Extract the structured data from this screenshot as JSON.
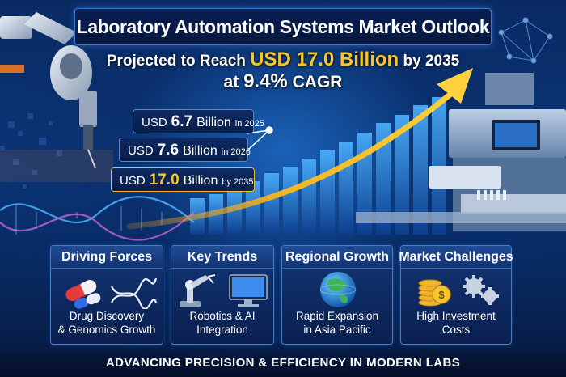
{
  "title": "Laboratory Automation Systems Market Outlook",
  "headline": {
    "line1_prefix": "Projected to Reach",
    "line1_value": "USD 17.0 Billion",
    "line1_suffix": "by 2035",
    "line2_prefix": "at",
    "line2_value": "9.4%",
    "line2_suffix": "CAGR"
  },
  "callouts": [
    {
      "currency": "USD",
      "amount": "6.7",
      "unit": "Billion",
      "year": "in 2025"
    },
    {
      "currency": "USD",
      "amount": "7.6",
      "unit": "Billion",
      "year": "in 2026"
    },
    {
      "currency": "USD",
      "amount": "17.0",
      "unit": "Billion",
      "year": "by 2035"
    }
  ],
  "cards": [
    {
      "title": "Driving Forces",
      "line1": "Drug Discovery",
      "line2": "& Genomics Growth",
      "icon": "pills-dna-icon"
    },
    {
      "title": "Key Trends",
      "line1": "Robotics & AI",
      "line2": "Integration",
      "icon": "robot-arm-monitor-icon"
    },
    {
      "title": "Regional Growth",
      "line1": "Rapid Expansion",
      "line2": "in Asia Pacific",
      "icon": "globe-icon"
    },
    {
      "title": "Market Challenges",
      "line1": "High Investment",
      "line2": "Costs",
      "icon": "coins-gears-icon"
    }
  ],
  "footer": "ADVANCING PRECISION & EFFICIENCY IN MODERN LABS",
  "colors": {
    "accent_gold": "#f7c52b",
    "background_navy": "#0a2a63",
    "bar_blue": "#2f8ee8"
  }
}
